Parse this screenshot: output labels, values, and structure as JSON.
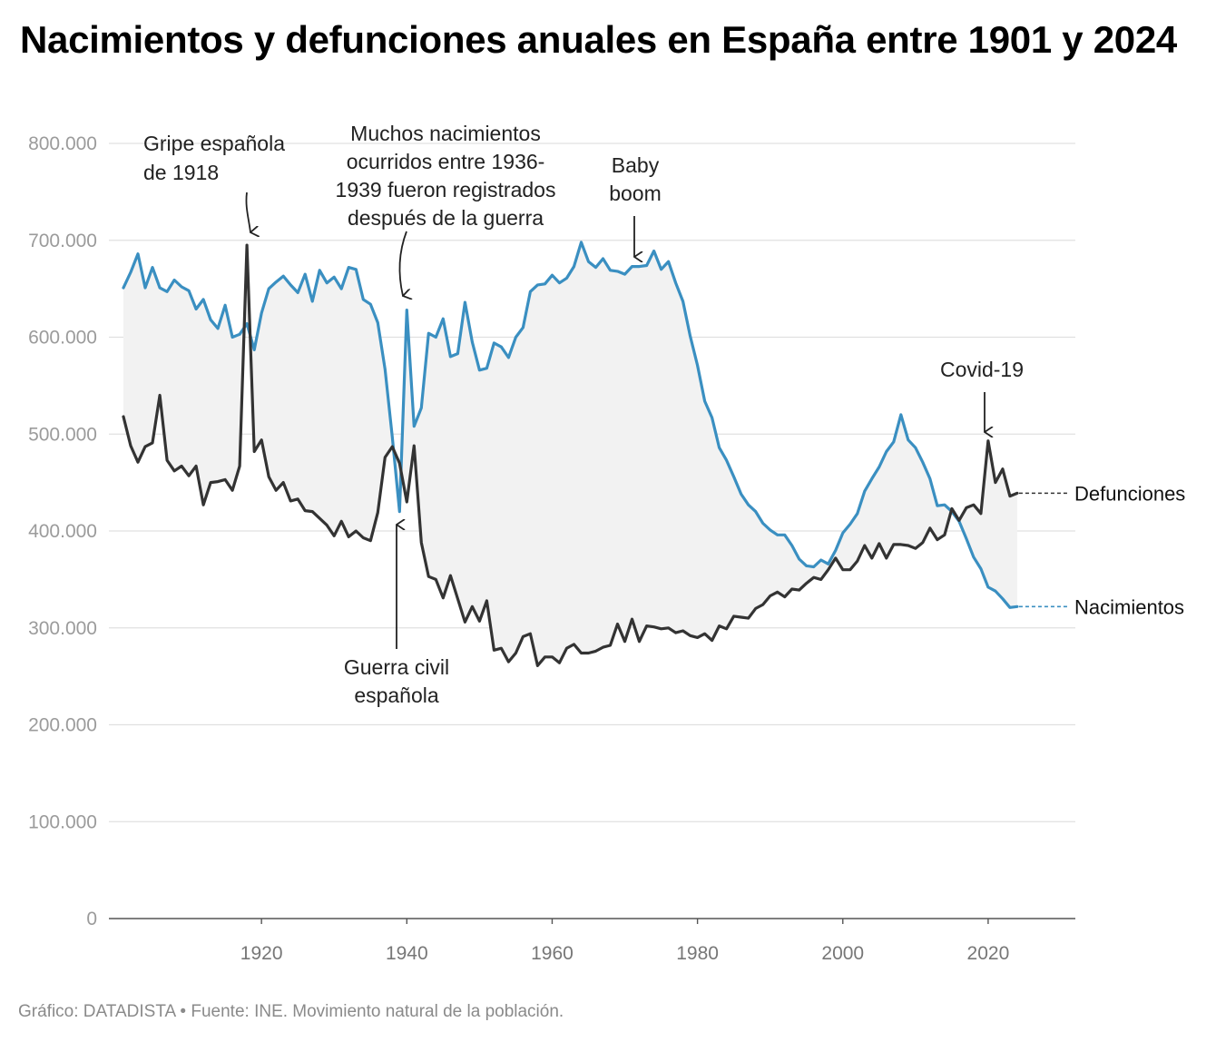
{
  "title": "Nacimientos y defunciones anuales en España entre 1901 y 2024",
  "footer": "Gráfico: DATADISTA • Fuente: INE. Movimiento natural de la población.",
  "colors": {
    "births": "#3a8fc1",
    "deaths": "#333333",
    "fill": "#f2f2f2",
    "grid": "#e0e0e0"
  },
  "chart_data": {
    "type": "line",
    "title": "Nacimientos y defunciones anuales en España entre 1901 y 2024",
    "xlabel": "",
    "ylabel": "",
    "x_start": 1901,
    "x_end": 2024,
    "xlim": [
      1899,
      2032
    ],
    "ylim": [
      0,
      800000
    ],
    "y_ticks": [
      {
        "value": 0,
        "label": "0"
      },
      {
        "value": 100000,
        "label": "100.000"
      },
      {
        "value": 200000,
        "label": "200.000"
      },
      {
        "value": 300000,
        "label": "300.000"
      },
      {
        "value": 400000,
        "label": "400.000"
      },
      {
        "value": 500000,
        "label": "500.000"
      },
      {
        "value": 600000,
        "label": "600.000"
      },
      {
        "value": 700000,
        "label": "700.000"
      },
      {
        "value": 800000,
        "label": "800.000"
      }
    ],
    "x_ticks": [
      {
        "value": 1920,
        "label": "1920"
      },
      {
        "value": 1940,
        "label": "1940"
      },
      {
        "value": 1960,
        "label": "1960"
      },
      {
        "value": 1980,
        "label": "1980"
      },
      {
        "value": 2000,
        "label": "2000"
      },
      {
        "value": 2020,
        "label": "2020"
      }
    ],
    "fill_between_series": true,
    "series": [
      {
        "name": "Nacimientos",
        "color": "#3a8fc1",
        "values": [
          651000,
          667000,
          686000,
          651000,
          672000,
          651000,
          647000,
          659000,
          652000,
          648000,
          629000,
          639000,
          618000,
          609000,
          633000,
          600000,
          603000,
          614000,
          587000,
          625000,
          650000,
          657000,
          663000,
          654000,
          646000,
          665000,
          637000,
          669000,
          656000,
          662000,
          650000,
          672000,
          670000,
          639000,
          634000,
          615000,
          567000,
          497000,
          420000,
          628000,
          508000,
          527000,
          604000,
          600000,
          619000,
          580000,
          583000,
          636000,
          595000,
          566000,
          568000,
          594000,
          590000,
          579000,
          600000,
          610000,
          647000,
          654000,
          655000,
          664000,
          656000,
          661000,
          673000,
          698000,
          678000,
          672000,
          681000,
          669000,
          668000,
          665000,
          673000,
          673000,
          674000,
          689000,
          670000,
          678000,
          656000,
          637000,
          601000,
          571000,
          534000,
          517000,
          486000,
          473000,
          456000,
          438000,
          427000,
          420000,
          408000,
          401000,
          396000,
          396000,
          385000,
          371000,
          364000,
          363000,
          370000,
          366000,
          380000,
          398000,
          407000,
          418000,
          441000,
          454000,
          466000,
          482000,
          492000,
          520000,
          494000,
          486000,
          471000,
          454000,
          426000,
          427000,
          420000,
          410000,
          392000,
          373000,
          361000,
          342000,
          338000,
          330000,
          321000,
          322000
        ]
      },
      {
        "name": "Defunciones",
        "color": "#333333",
        "values": [
          518000,
          488000,
          471000,
          487000,
          491000,
          540000,
          473000,
          462000,
          467000,
          457000,
          467000,
          427000,
          450000,
          451000,
          453000,
          442000,
          467000,
          695000,
          482000,
          494000,
          456000,
          442000,
          450000,
          431000,
          433000,
          421000,
          420000,
          413000,
          406000,
          395000,
          410000,
          394000,
          400000,
          393000,
          390000,
          419000,
          476000,
          487000,
          470000,
          430000,
          488000,
          388000,
          353000,
          350000,
          331000,
          354000,
          330000,
          306000,
          322000,
          307000,
          328000,
          277000,
          279000,
          265000,
          274000,
          291000,
          294000,
          261000,
          270000,
          270000,
          264000,
          279000,
          283000,
          274000,
          274000,
          276000,
          280000,
          282000,
          304000,
          286000,
          309000,
          286000,
          302000,
          301000,
          299000,
          300000,
          295000,
          297000,
          292000,
          290000,
          294000,
          287000,
          302000,
          299000,
          312000,
          311000,
          310000,
          320000,
          324000,
          333000,
          337000,
          332000,
          340000,
          339000,
          346000,
          352000,
          350000,
          360000,
          372000,
          360000,
          360000,
          369000,
          385000,
          372000,
          387000,
          372000,
          386000,
          386000,
          385000,
          382000,
          388000,
          403000,
          391000,
          396000,
          423000,
          411000,
          424000,
          427000,
          418000,
          493000,
          450000,
          464000,
          436000,
          439000
        ]
      }
    ],
    "annotations": [
      {
        "id": "gripe",
        "lines": [
          "Gripe española",
          "de 1918"
        ],
        "year": 1918
      },
      {
        "id": "registros",
        "lines": [
          "Muchos nacimientos",
          "ocurridos entre 1936-",
          "1939 fueron registrados",
          "después de la guerra"
        ],
        "year": 1940
      },
      {
        "id": "babyboom",
        "lines": [
          "Baby",
          "boom"
        ],
        "year": 1971
      },
      {
        "id": "guerra",
        "lines": [
          "Guerra civil",
          "española"
        ],
        "year": 1939
      },
      {
        "id": "covid",
        "lines": [
          "Covid-19"
        ],
        "year": 2020
      }
    ],
    "legend": {
      "deaths_label": "Defunciones",
      "births_label": "Nacimientos",
      "placement": "right-end-labels"
    }
  }
}
